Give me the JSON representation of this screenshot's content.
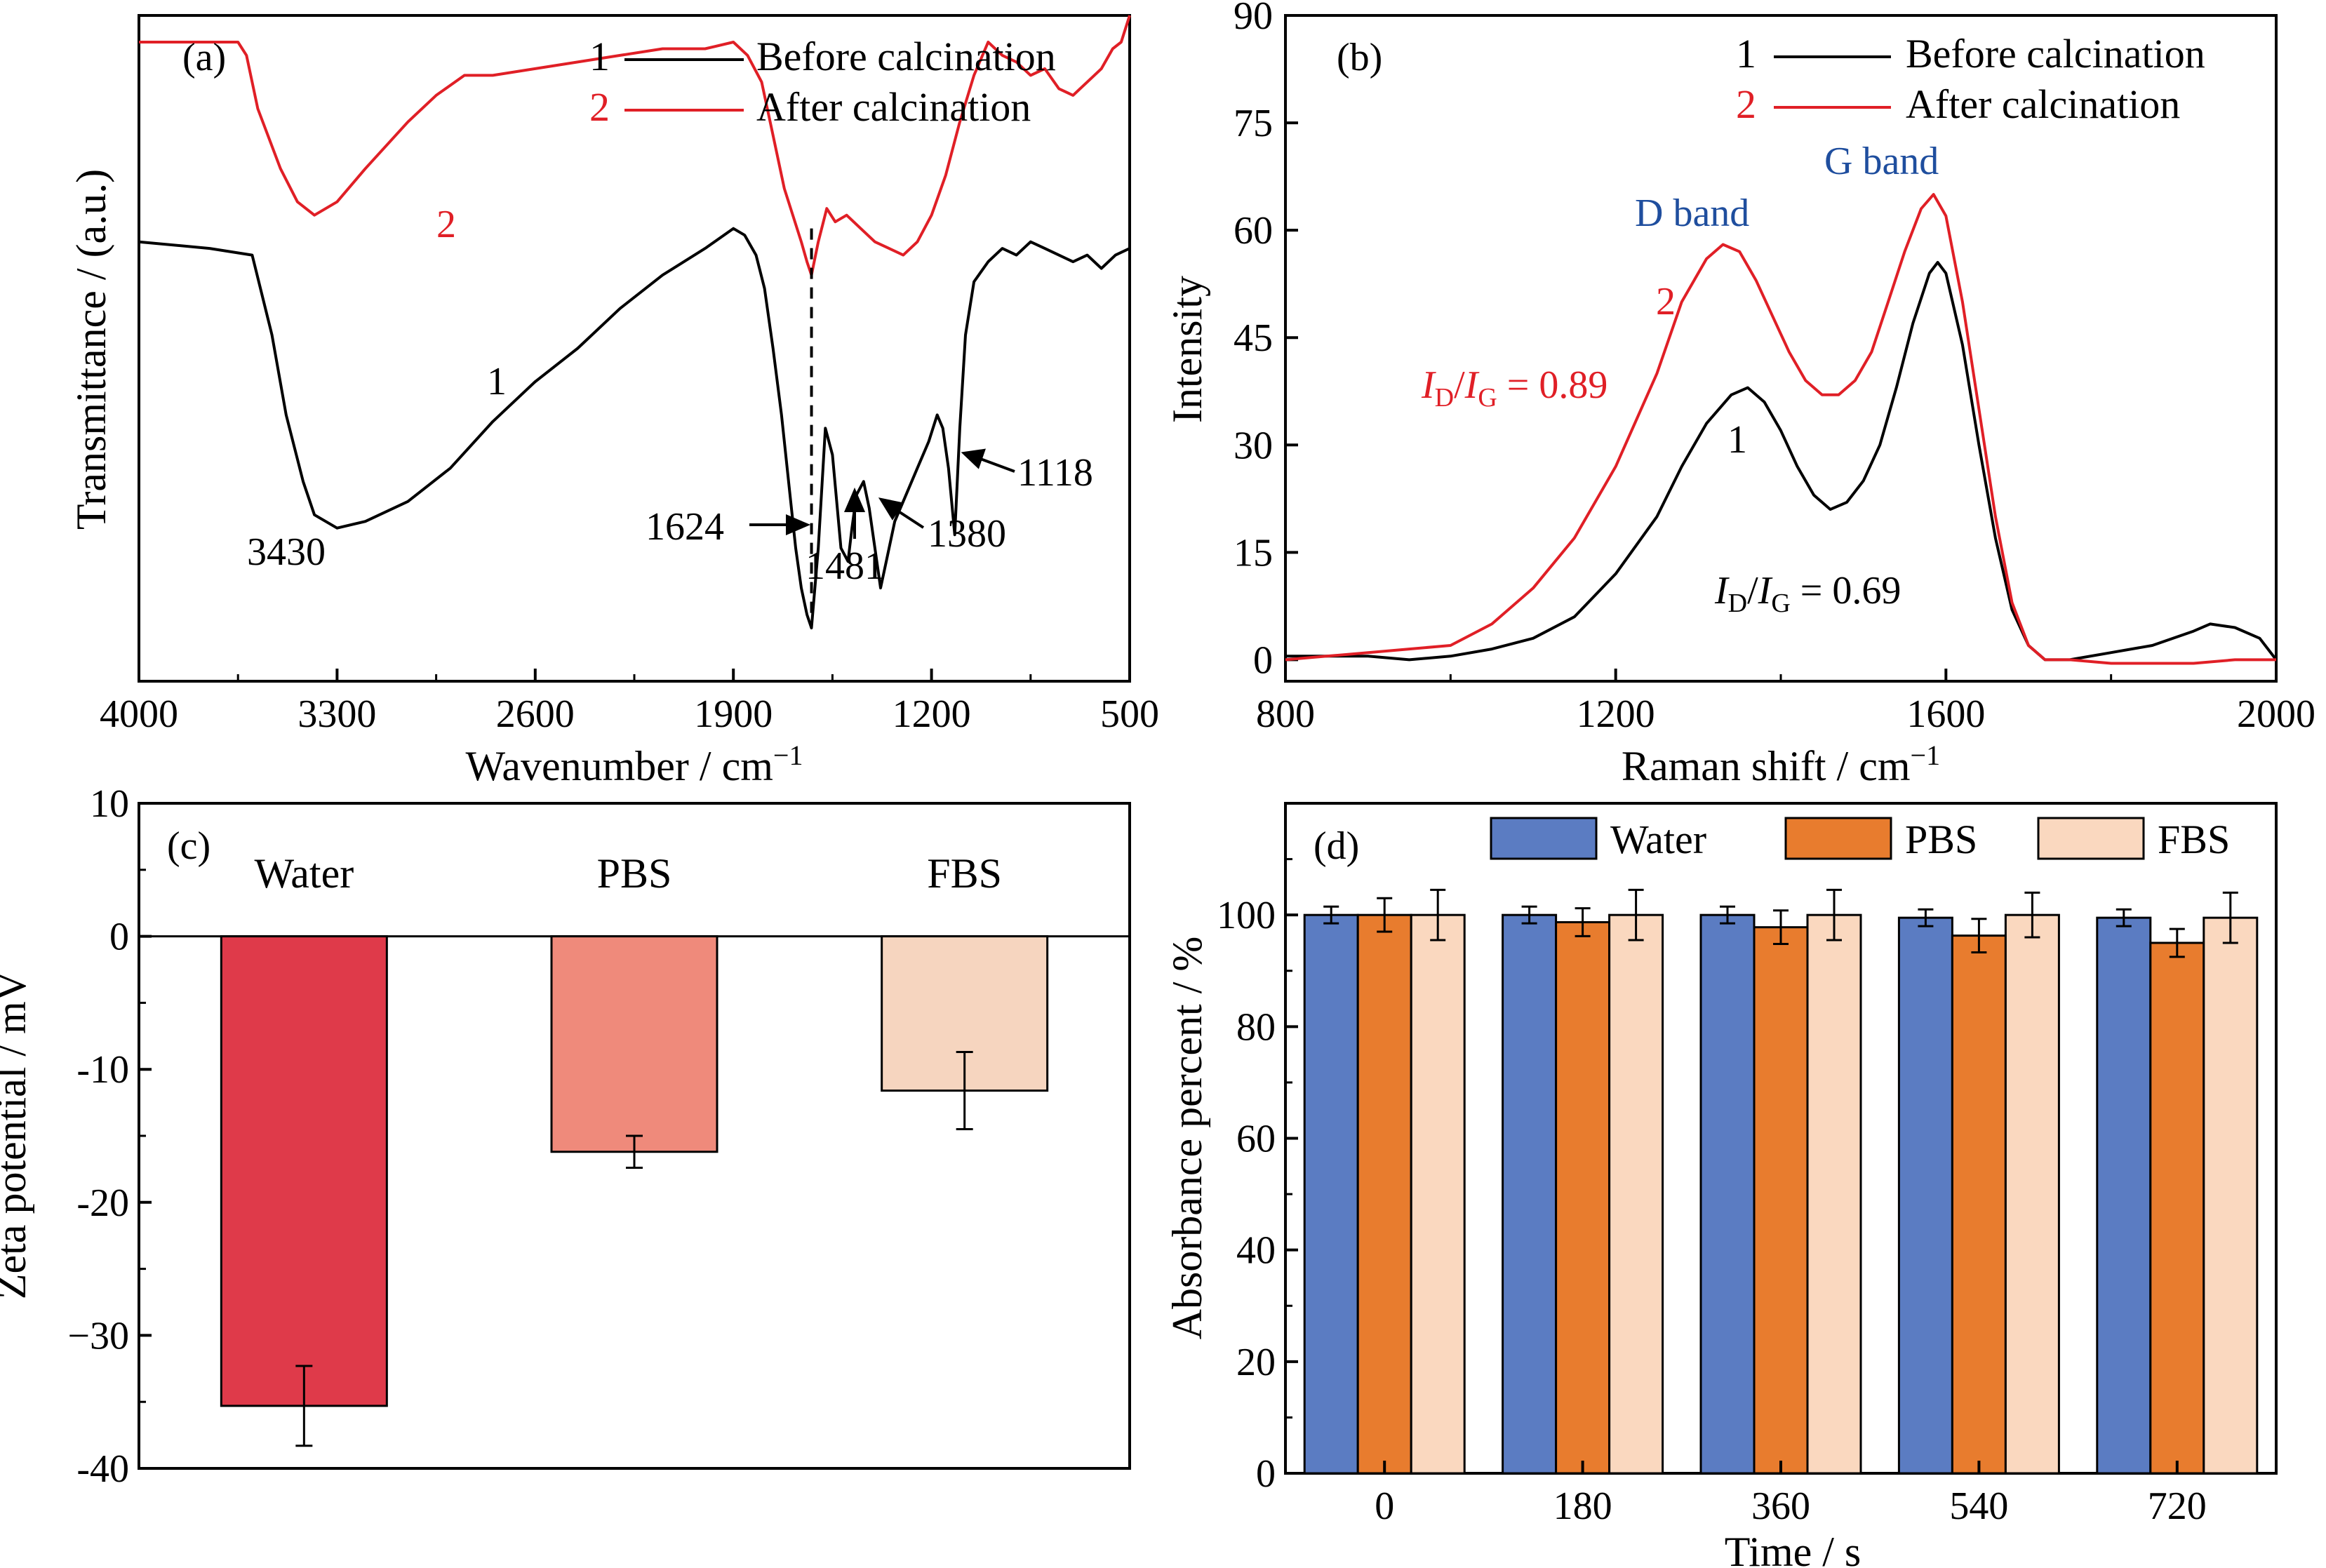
{
  "colors": {
    "black": "#000000",
    "red": "#e01f26",
    "blue_text": "#1f4e9e",
    "bar_water_c": "#df3a4a",
    "bar_pbs_c": "#ef8a7b",
    "bar_fbs_c": "#f6d5bf",
    "bar_water_d": "#5b7cc2",
    "bar_pbs_d": "#e87c2e",
    "bar_fbs_d": "#fad8bf"
  },
  "chart_data": [
    {
      "id": "a",
      "panel_label": "(a)",
      "type": "line",
      "xlabel_main": "Wavenumber / cm",
      "xlabel_sup": "−1",
      "ylabel": "Transmittance / (a.u.)",
      "xlim": [
        4000,
        500
      ],
      "x_ticks": [
        4000,
        3300,
        2600,
        1900,
        1200,
        500
      ],
      "ylim": [
        0,
        100
      ],
      "legend": [
        {
          "num": "1",
          "label": "Before calcination",
          "color": "#000000"
        },
        {
          "num": "2",
          "label": "After calcination",
          "color": "#e01f26"
        }
      ],
      "series": [
        {
          "name": "Before calcination",
          "number": "1",
          "color": "#000000",
          "x": [
            4000,
            3750,
            3600,
            3530,
            3480,
            3420,
            3380,
            3300,
            3200,
            3050,
            2900,
            2750,
            2600,
            2450,
            2300,
            2150,
            2000,
            1900,
            1860,
            1820,
            1790,
            1760,
            1730,
            1700,
            1680,
            1660,
            1640,
            1624,
            1600,
            1575,
            1550,
            1520,
            1495,
            1481,
            1465,
            1440,
            1420,
            1400,
            1380,
            1360,
            1330,
            1290,
            1250,
            1210,
            1180,
            1160,
            1140,
            1118,
            1100,
            1080,
            1050,
            1000,
            950,
            900,
            850,
            800,
            750,
            700,
            650,
            600,
            550,
            500
          ],
          "y": [
            66,
            65,
            64,
            52,
            40,
            30,
            25,
            23,
            24,
            27,
            32,
            39,
            45,
            50,
            56,
            61,
            65,
            68,
            67,
            64,
            59,
            50,
            40,
            28,
            20,
            14,
            10,
            8,
            20,
            38,
            34,
            20,
            18,
            23,
            28,
            30,
            26,
            20,
            14,
            18,
            24,
            28,
            32,
            36,
            40,
            38,
            32,
            22,
            38,
            52,
            60,
            63,
            65,
            64,
            66,
            65,
            64,
            63,
            64,
            62,
            64,
            65
          ]
        },
        {
          "name": "After calcination",
          "number": "2",
          "color": "#e01f26",
          "x": [
            4000,
            3750,
            3650,
            3620,
            3580,
            3500,
            3440,
            3380,
            3300,
            3200,
            3050,
            2950,
            2850,
            2750,
            2600,
            2450,
            2300,
            2150,
            2000,
            1900,
            1850,
            1800,
            1760,
            1720,
            1690,
            1660,
            1640,
            1624,
            1600,
            1570,
            1540,
            1500,
            1450,
            1400,
            1350,
            1300,
            1250,
            1200,
            1150,
            1100,
            1050,
            1000,
            950,
            900,
            850,
            800,
            750,
            700,
            650,
            600,
            560,
            530,
            500
          ],
          "y": [
            96,
            96,
            96,
            94,
            86,
            77,
            72,
            70,
            72,
            77,
            84,
            88,
            91,
            91,
            92,
            93,
            94,
            95,
            95,
            96,
            94,
            90,
            82,
            74,
            70,
            66,
            63,
            61,
            66,
            71,
            69,
            70,
            68,
            66,
            65,
            64,
            66,
            70,
            76,
            84,
            91,
            96,
            94,
            93,
            91,
            92,
            89,
            88,
            90,
            92,
            95,
            96,
            100
          ]
        }
      ],
      "annotations": {
        "curve1_label": "1",
        "curve2_label": "2",
        "peak_3430": "3430",
        "peak_1624": "1624",
        "peak_1481": "1481",
        "peak_1380": "1380",
        "peak_1118": "1118"
      },
      "dashed_line_at": 1624
    },
    {
      "id": "b",
      "panel_label": "(b)",
      "type": "line",
      "xlabel_main": "Raman shift / cm",
      "xlabel_sup": "−1",
      "ylabel": "Intensity",
      "xlim": [
        800,
        2000
      ],
      "x_ticks": [
        800,
        1200,
        1600,
        2000
      ],
      "ylim": [
        -3,
        90
      ],
      "y_ticks": [
        0,
        15,
        30,
        45,
        60,
        75,
        90
      ],
      "legend": [
        {
          "num": "1",
          "label": "Before calcination",
          "color": "#000000"
        },
        {
          "num": "2",
          "label": "After calcination",
          "color": "#e01f26"
        }
      ],
      "series": [
        {
          "name": "Before calcination",
          "number": "1",
          "color": "#000000",
          "x": [
            800,
            850,
            900,
            950,
            1000,
            1050,
            1100,
            1150,
            1200,
            1250,
            1280,
            1310,
            1340,
            1360,
            1380,
            1400,
            1420,
            1440,
            1460,
            1480,
            1500,
            1520,
            1540,
            1560,
            1580,
            1590,
            1600,
            1620,
            1640,
            1660,
            1680,
            1700,
            1720,
            1750,
            1800,
            1850,
            1900,
            1920,
            1950,
            1980,
            2000
          ],
          "y": [
            0.5,
            0.5,
            0.5,
            0,
            0.5,
            1.5,
            3,
            6,
            12,
            20,
            27,
            33,
            37,
            38,
            36,
            32,
            27,
            23,
            21,
            22,
            25,
            30,
            38,
            47,
            54,
            55.5,
            54,
            44,
            30,
            17,
            7,
            2,
            0,
            0,
            1,
            2,
            4,
            5,
            4.5,
            3,
            0
          ]
        },
        {
          "name": "After calcination",
          "number": "2",
          "color": "#e01f26",
          "x": [
            800,
            850,
            900,
            950,
            1000,
            1050,
            1100,
            1150,
            1200,
            1250,
            1280,
            1310,
            1330,
            1350,
            1370,
            1390,
            1410,
            1430,
            1450,
            1470,
            1490,
            1510,
            1530,
            1550,
            1570,
            1585,
            1600,
            1620,
            1640,
            1660,
            1680,
            1700,
            1720,
            1750,
            1800,
            1850,
            1900,
            1950,
            2000
          ],
          "y": [
            0,
            0.5,
            1,
            1.5,
            2,
            5,
            10,
            17,
            27,
            40,
            50,
            56,
            58,
            57,
            53,
            48,
            43,
            39,
            37,
            37,
            39,
            43,
            50,
            57,
            63,
            65,
            62,
            50,
            35,
            20,
            8,
            2,
            0,
            0,
            -0.5,
            -0.5,
            -0.5,
            0,
            0
          ]
        }
      ],
      "annotations": {
        "d_band": "D band",
        "g_band": "G band",
        "curve1_label": "1",
        "curve2_label": "2",
        "ratio_red_I": "I",
        "ratio_red_D": "D",
        "ratio_red_slash": "/",
        "ratio_red_I2": "I",
        "ratio_red_G": "G",
        "ratio_red_value": " = 0.89",
        "ratio_black_I": "I",
        "ratio_black_D": "D",
        "ratio_black_slash": "/",
        "ratio_black_I2": "I",
        "ratio_black_G": "G",
        "ratio_black_value": " = 0.69"
      }
    },
    {
      "id": "c",
      "panel_label": "(c)",
      "type": "bar",
      "ylabel": "Zeta potential / mV",
      "ylim": [
        -40,
        10
      ],
      "y_ticks": [
        10,
        0,
        -10,
        -20,
        -30,
        -40
      ],
      "y_tick_labels": [
        "10",
        "0",
        "-10",
        "-20",
        "−30",
        "-40"
      ],
      "categories": [
        "Water",
        "PBS",
        "FBS"
      ],
      "values": [
        -35.3,
        -16.2,
        -11.6
      ],
      "errors": [
        3.0,
        1.2,
        2.9
      ],
      "colors": [
        "#df3a4a",
        "#ef8a7b",
        "#f6d5bf"
      ]
    },
    {
      "id": "d",
      "panel_label": "(d)",
      "type": "bar",
      "xlabel": "Time / s",
      "ylabel": "Absorbance percent / %",
      "ylim": [
        0,
        120
      ],
      "y_ticks": [
        0,
        20,
        40,
        60,
        80,
        100
      ],
      "categories": [
        "0",
        "180",
        "360",
        "540",
        "720"
      ],
      "series": [
        {
          "name": "Water",
          "color": "#5b7cc2",
          "values": [
            100,
            100,
            100,
            99.5,
            99.5
          ],
          "errors": [
            1.5,
            1.5,
            1.5,
            1.5,
            1.5
          ]
        },
        {
          "name": "PBS",
          "color": "#e87c2e",
          "values": [
            100,
            98.7,
            97.8,
            96.3,
            95.0
          ],
          "errors": [
            3.0,
            2.5,
            3.0,
            3.0,
            2.5
          ]
        },
        {
          "name": "FBS",
          "color": "#fad8bf",
          "values": [
            100,
            100,
            100,
            100,
            99.5
          ],
          "errors": [
            4.5,
            4.5,
            4.5,
            4.0,
            4.5
          ]
        }
      ]
    }
  ]
}
